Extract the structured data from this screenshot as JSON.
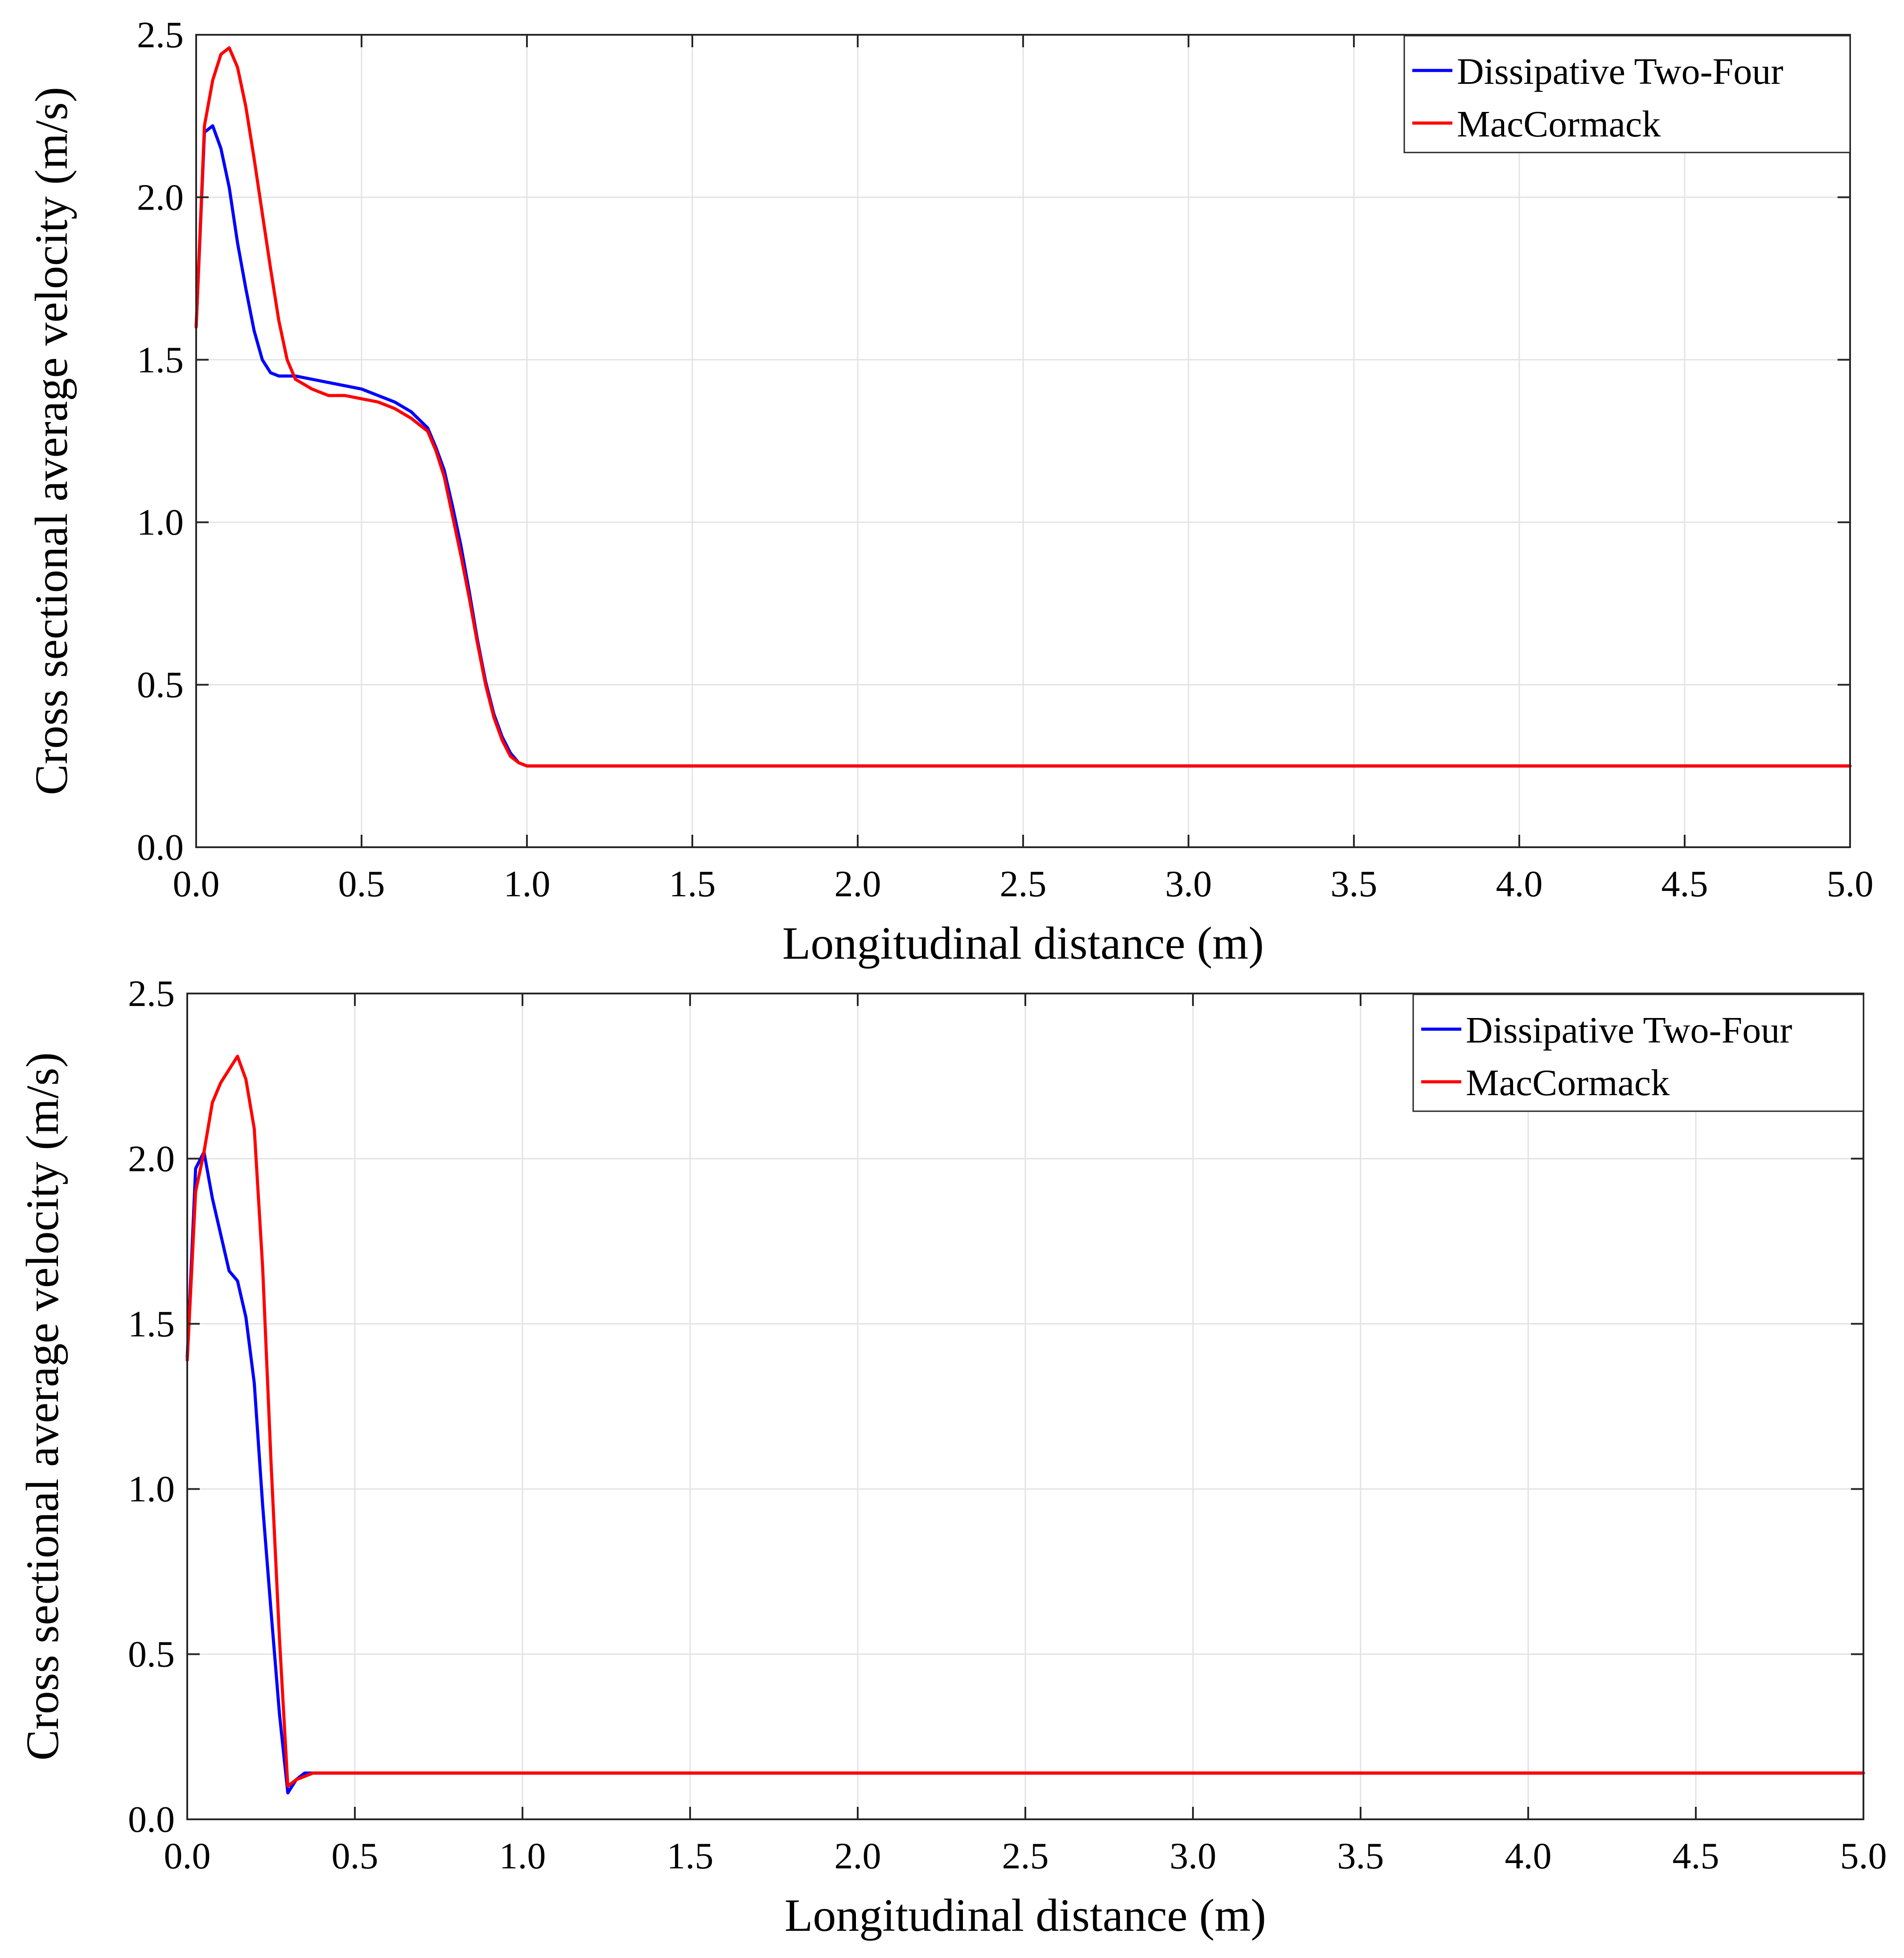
{
  "chart_data": [
    {
      "type": "line",
      "title": "",
      "xlabel": "Longitudinal distance (m)",
      "ylabel": "Cross sectional average velocity (m/s)",
      "xlim": [
        0,
        5
      ],
      "ylim": [
        0,
        2.5
      ],
      "xticks": [
        0,
        0.5,
        1,
        1.5,
        2,
        2.5,
        3,
        3.5,
        4,
        4.5,
        5
      ],
      "xtick_labels": [
        "0.0",
        "0.5",
        "1.0",
        "1.5",
        "2.0",
        "2.5",
        "3.0",
        "3.5",
        "4.0",
        "4.5",
        "5.0"
      ],
      "yticks": [
        0,
        0.5,
        1,
        1.5,
        2,
        2.5
      ],
      "ytick_labels": [
        "0.0",
        "0.5",
        "1.0",
        "1.5",
        "2.0",
        "2.5"
      ],
      "grid": true,
      "legend_position": "top-right",
      "series": [
        {
          "name": "Dissipative Two-Four",
          "color": "#0000ff",
          "x": [
            0,
            0.025,
            0.05,
            0.075,
            0.1,
            0.125,
            0.15,
            0.175,
            0.2,
            0.225,
            0.25,
            0.3,
            0.35,
            0.4,
            0.45,
            0.5,
            0.55,
            0.6,
            0.65,
            0.7,
            0.725,
            0.75,
            0.775,
            0.8,
            0.825,
            0.85,
            0.875,
            0.9,
            0.925,
            0.95,
            0.975,
            1.0,
            5.0
          ],
          "y": [
            1.6,
            2.2,
            2.22,
            2.15,
            2.03,
            1.86,
            1.72,
            1.59,
            1.5,
            1.46,
            1.45,
            1.45,
            1.44,
            1.43,
            1.42,
            1.41,
            1.39,
            1.37,
            1.34,
            1.29,
            1.23,
            1.16,
            1.05,
            0.93,
            0.79,
            0.64,
            0.51,
            0.41,
            0.34,
            0.29,
            0.26,
            0.25,
            0.25
          ]
        },
        {
          "name": "MacCormack",
          "color": "#ff0000",
          "x": [
            0,
            0.025,
            0.05,
            0.075,
            0.1,
            0.125,
            0.15,
            0.175,
            0.2,
            0.225,
            0.25,
            0.275,
            0.3,
            0.35,
            0.4,
            0.45,
            0.5,
            0.55,
            0.6,
            0.65,
            0.7,
            0.725,
            0.75,
            0.775,
            0.8,
            0.825,
            0.85,
            0.875,
            0.9,
            0.925,
            0.95,
            0.975,
            1.0,
            5.0
          ],
          "y": [
            1.6,
            2.22,
            2.36,
            2.44,
            2.46,
            2.4,
            2.28,
            2.12,
            1.95,
            1.78,
            1.62,
            1.5,
            1.44,
            1.41,
            1.39,
            1.39,
            1.38,
            1.37,
            1.35,
            1.32,
            1.28,
            1.22,
            1.14,
            1.02,
            0.9,
            0.77,
            0.63,
            0.5,
            0.4,
            0.33,
            0.28,
            0.26,
            0.25,
            0.25
          ]
        }
      ]
    },
    {
      "type": "line",
      "title": "",
      "xlabel": "Longitudinal distance (m)",
      "ylabel": "Cross sectional average velocity (m/s)",
      "xlim": [
        0,
        5
      ],
      "ylim": [
        0,
        2.5
      ],
      "xticks": [
        0,
        0.5,
        1,
        1.5,
        2,
        2.5,
        3,
        3.5,
        4,
        4.5,
        5
      ],
      "xtick_labels": [
        "0.0",
        "0.5",
        "1.0",
        "1.5",
        "2.0",
        "2.5",
        "3.0",
        "3.5",
        "4.0",
        "4.5",
        "5.0"
      ],
      "yticks": [
        0,
        0.5,
        1,
        1.5,
        2,
        2.5
      ],
      "ytick_labels": [
        "0.0",
        "0.5",
        "1.0",
        "1.5",
        "2.0",
        "2.5"
      ],
      "grid": true,
      "legend_position": "top-right",
      "series": [
        {
          "name": "Dissipative Two-Four",
          "color": "#0000ff",
          "x": [
            0,
            0.025,
            0.05,
            0.075,
            0.1,
            0.125,
            0.15,
            0.175,
            0.2,
            0.225,
            0.25,
            0.275,
            0.3,
            0.325,
            0.35,
            0.375,
            0.4,
            0.45,
            5.0
          ],
          "y": [
            1.4,
            1.97,
            2.02,
            1.88,
            1.77,
            1.66,
            1.63,
            1.52,
            1.32,
            0.95,
            0.63,
            0.32,
            0.08,
            0.12,
            0.14,
            0.14,
            0.14,
            0.14,
            0.14
          ]
        },
        {
          "name": "MacCormack",
          "color": "#ff0000",
          "x": [
            0,
            0.025,
            0.05,
            0.075,
            0.1,
            0.125,
            0.15,
            0.175,
            0.2,
            0.225,
            0.25,
            0.275,
            0.3,
            0.325,
            0.35,
            0.375,
            0.4,
            0.45,
            5.0
          ],
          "y": [
            1.39,
            1.9,
            2.02,
            2.17,
            2.23,
            2.27,
            2.31,
            2.24,
            2.09,
            1.67,
            1.08,
            0.55,
            0.1,
            0.12,
            0.13,
            0.14,
            0.14,
            0.14,
            0.14
          ]
        }
      ]
    }
  ]
}
